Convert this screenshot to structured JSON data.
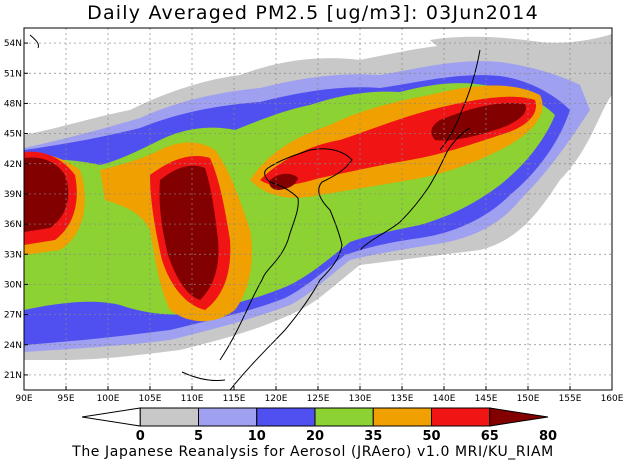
{
  "title": "Daily Averaged PM2.5 [ug/m3]: 03Jun2014",
  "credit": "The Japanese Reanalysis for Aerosol (JRAero) v1.0 MRI/KU_RIAM",
  "map": {
    "lon_range": [
      90,
      160
    ],
    "lat_range": [
      19.5,
      55.5
    ],
    "lon_ticks": [
      "90E",
      "95E",
      "100E",
      "105E",
      "110E",
      "115E",
      "120E",
      "125E",
      "130E",
      "135E",
      "140E",
      "145E",
      "150E",
      "155E",
      "160E"
    ],
    "lat_ticks": [
      "54N",
      "51N",
      "48N",
      "45N",
      "42N",
      "39N",
      "36N",
      "33N",
      "30N",
      "27N",
      "24N",
      "21N"
    ],
    "lat_tick_values": [
      54,
      51,
      48,
      45,
      42,
      39,
      36,
      33,
      30,
      27,
      24,
      21
    ]
  },
  "colorbar": {
    "labels": [
      "0",
      "5",
      "10",
      "20",
      "35",
      "50",
      "65",
      "80"
    ],
    "colors": [
      "#ffffff",
      "#c8c8c8",
      "#a0a0f0",
      "#5050f0",
      "#8cd232",
      "#f0a000",
      "#f01414",
      "#820000"
    ]
  }
}
